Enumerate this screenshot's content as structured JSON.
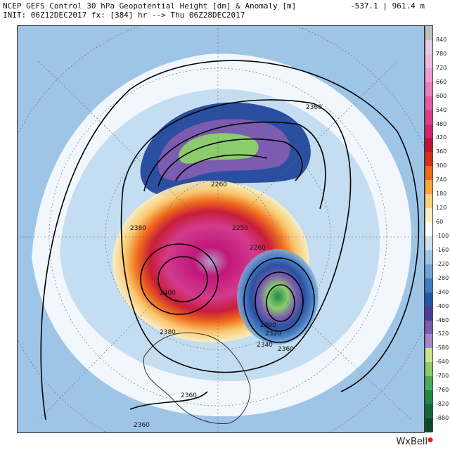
{
  "header": {
    "title": "NCEP GEFS Control 30 hPa Geopotential Height [dm] & Anomaly [m]",
    "init": "INIT: 06Z12DEC2017 fx: [384] hr --> Thu 06Z28DEC2017",
    "range": "-537.1 | 961.4 m"
  },
  "colorbar": {
    "labels": [
      "840",
      "780",
      "720",
      "660",
      "600",
      "540",
      "480",
      "420",
      "360",
      "300",
      "240",
      "180",
      "120",
      "60",
      "-100",
      "-160",
      "-220",
      "-280",
      "-340",
      "-400",
      "-460",
      "-520",
      "-580",
      "-640",
      "-700",
      "-760",
      "-820",
      "-880"
    ],
    "colors": [
      "#bfbfbf",
      "#e3cbe0",
      "#f0b8e0",
      "#ec9dd6",
      "#e87ec4",
      "#e45ca8",
      "#dc3e8c",
      "#d4236e",
      "#c41235",
      "#d6301c",
      "#ef6a1c",
      "#f7a93a",
      "#f9d27a",
      "#fcf0c0",
      "#ffffff",
      "#cfe2f2",
      "#9ec5e6",
      "#6ea6d8",
      "#3e7fc2",
      "#1e5aa8",
      "#4a3c9a",
      "#7c5cb0",
      "#a488c8",
      "#c6e58c",
      "#8ccc6c",
      "#4cab5c",
      "#1f8a48",
      "#0e6a38",
      "#0a4a2a"
    ]
  },
  "contour_labels": [
    "2360",
    "2360",
    "2380",
    "2260",
    "2250",
    "2260",
    "2300",
    "2320",
    "2340",
    "2400",
    "2380",
    "2360",
    "2360"
  ],
  "brand": {
    "name": "WxBell",
    "dot": "●"
  }
}
